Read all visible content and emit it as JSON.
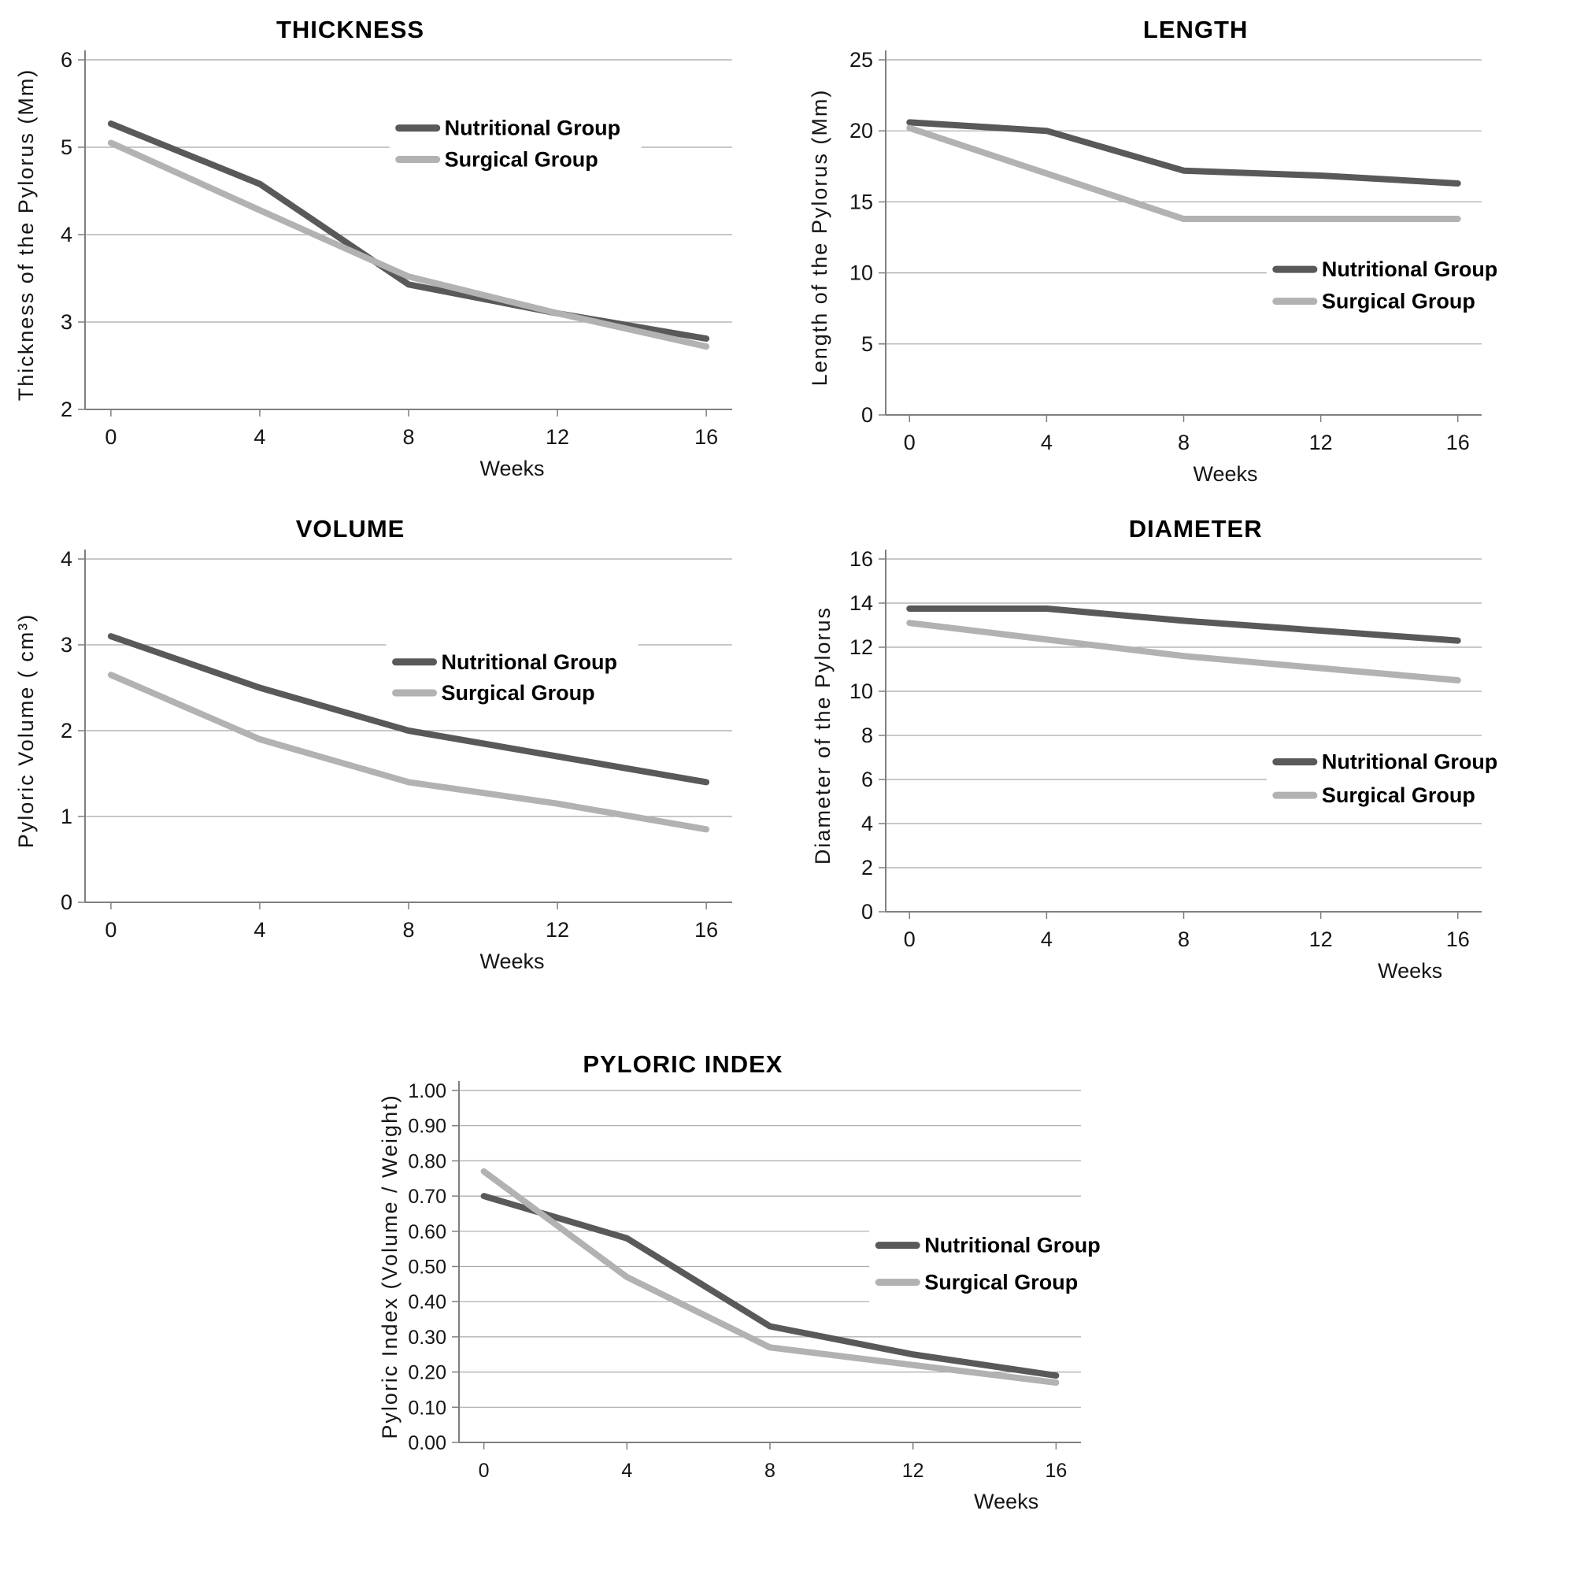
{
  "page": {
    "background": "#ffffff"
  },
  "colors": {
    "nutritional": "#595959",
    "surgical": "#b2b2b2",
    "gridline": "#a8a8a8",
    "axis": "#7f7f7f",
    "text": "#000000",
    "tick_text": "#151515"
  },
  "legend": {
    "nutritional_label": "Nutritional Group",
    "surgical_label": "Surgical Group"
  },
  "chart_data": [
    {
      "id": "thickness",
      "type": "line",
      "title": "THICKNESS",
      "xlabel": "Weeks",
      "ylabel": "Thickness  of the Pylorus (Mm)",
      "x": [
        0,
        4,
        8,
        12,
        16
      ],
      "x_tick_labels": [
        "0",
        "4",
        "8",
        "12",
        "16"
      ],
      "ylim": [
        2,
        6
      ],
      "ytick_values": [
        6,
        5,
        4,
        3,
        2
      ],
      "ytick_labels": [
        "6",
        "5",
        "4",
        "3",
        "2"
      ],
      "grid": true,
      "legend_position": "inside-right",
      "series": [
        {
          "name": "Nutritional Group",
          "color_key": "nutritional",
          "values": [
            5.27,
            4.58,
            3.43,
            3.1,
            2.81
          ]
        },
        {
          "name": "Surgical Group",
          "color_key": "surgical",
          "values": [
            5.05,
            4.28,
            3.52,
            3.1,
            2.72
          ]
        }
      ]
    },
    {
      "id": "length",
      "type": "line",
      "title": "LENGTH",
      "xlabel": "Weeks",
      "ylabel": "Length of the Pylorus (Mm)",
      "x": [
        0,
        4,
        8,
        12,
        16
      ],
      "x_tick_labels": [
        "0",
        "4",
        "8",
        "12",
        "16"
      ],
      "ylim": [
        0,
        25
      ],
      "ytick_values": [
        25,
        20,
        15,
        10,
        5,
        0
      ],
      "ytick_labels": [
        "25",
        "20",
        "15",
        "10",
        "5",
        "0"
      ],
      "grid": true,
      "legend_position": "inside-lower-right",
      "series": [
        {
          "name": "Nutritional Group",
          "color_key": "nutritional",
          "values": [
            20.6,
            20.0,
            17.2,
            16.85,
            16.3
          ]
        },
        {
          "name": "Surgical Group",
          "color_key": "surgical",
          "values": [
            20.2,
            17.0,
            13.8,
            13.8,
            13.8
          ]
        }
      ]
    },
    {
      "id": "volume",
      "type": "line",
      "title": "VOLUME",
      "xlabel": "Weeks",
      "ylabel": "Pyloric Volume  ( cm³)",
      "x": [
        0,
        4,
        8,
        12,
        16
      ],
      "x_tick_labels": [
        "0",
        "4",
        "8",
        "12",
        "16"
      ],
      "ylim": [
        0,
        4
      ],
      "ytick_values": [
        4,
        3,
        2,
        1,
        0
      ],
      "ytick_labels": [
        "4",
        "3",
        "2",
        "1",
        "0"
      ],
      "grid": true,
      "legend_position": "inside-right",
      "series": [
        {
          "name": "Nutritional Group",
          "color_key": "nutritional",
          "values": [
            3.1,
            2.5,
            2.0,
            1.7,
            1.4
          ]
        },
        {
          "name": "Surgical Group",
          "color_key": "surgical",
          "values": [
            2.65,
            1.9,
            1.4,
            1.15,
            0.85
          ]
        }
      ]
    },
    {
      "id": "diameter",
      "type": "line",
      "title": "DIAMETER",
      "xlabel": "Weeks",
      "ylabel": "Diameter of the Pylorus",
      "x": [
        0,
        4,
        8,
        12,
        16
      ],
      "x_tick_labels": [
        "0",
        "4",
        "8",
        "12",
        "16"
      ],
      "ylim": [
        0,
        16
      ],
      "ytick_values": [
        16,
        14,
        12,
        10,
        8,
        6,
        4,
        2,
        0
      ],
      "ytick_labels": [
        "16",
        "14",
        "12",
        "10",
        "8",
        "6",
        "4",
        "2",
        "0"
      ],
      "grid": true,
      "legend_position": "inside-lower-right",
      "series": [
        {
          "name": "Nutritional Group",
          "color_key": "nutritional",
          "values": [
            13.75,
            13.75,
            13.2,
            12.75,
            12.3
          ]
        },
        {
          "name": "Surgical Group",
          "color_key": "surgical",
          "values": [
            13.1,
            12.35,
            11.6,
            11.05,
            10.5
          ]
        }
      ]
    },
    {
      "id": "pyloric",
      "type": "line",
      "title": "PYLORIC  INDEX",
      "xlabel": "Weeks",
      "ylabel": "Pyloric Index   (Volume / Weight)",
      "x": [
        0,
        4,
        8,
        12,
        16
      ],
      "x_tick_labels": [
        "0",
        "4",
        "8",
        "12",
        "16"
      ],
      "ylim": [
        0,
        1
      ],
      "ytick_values": [
        1.0,
        0.9,
        0.8,
        0.7,
        0.6,
        0.5,
        0.4,
        0.3,
        0.2,
        0.1,
        0.0
      ],
      "ytick_labels": [
        "1.00",
        "0.90",
        "0.80",
        "0.70",
        "0.60",
        "0.50",
        "0.40",
        "0.30",
        "0.20",
        "0.10",
        "0.00"
      ],
      "grid": true,
      "legend_position": "inside-right",
      "series": [
        {
          "name": "Nutritional Group",
          "color_key": "nutritional",
          "values": [
            0.7,
            0.58,
            0.33,
            0.25,
            0.19
          ]
        },
        {
          "name": "Surgical Group",
          "color_key": "surgical",
          "values": [
            0.77,
            0.47,
            0.27,
            0.22,
            0.17
          ]
        }
      ]
    }
  ]
}
